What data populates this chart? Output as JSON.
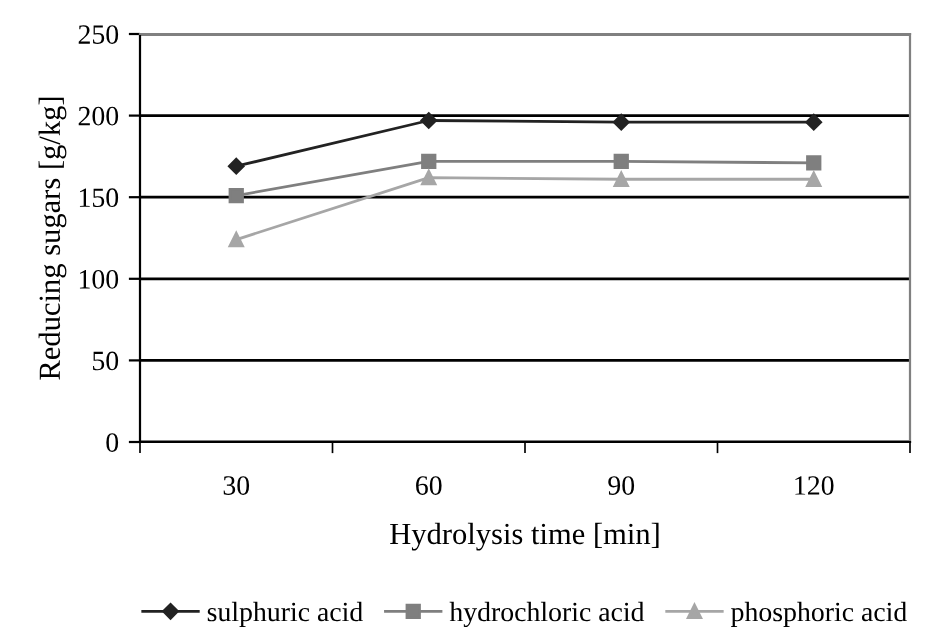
{
  "chart_data": {
    "type": "line",
    "xlabel": "Hydrolysis time [min]",
    "ylabel": "Reducing sugars [g/kg]",
    "categories": [
      "30",
      "60",
      "90",
      "120"
    ],
    "series": [
      {
        "name": "sulphuric acid",
        "color": "#222222",
        "marker": "diamond",
        "values": [
          169,
          197,
          196,
          196
        ]
      },
      {
        "name": "hydrochloric acid",
        "color": "#7f7f7f",
        "marker": "square",
        "values": [
          151,
          172,
          172,
          171
        ]
      },
      {
        "name": "phosphoric acid",
        "color": "#a6a6a6",
        "marker": "triangle",
        "values": [
          124,
          162,
          161,
          161
        ]
      }
    ],
    "ylim": [
      0,
      250
    ],
    "yticks": [
      0,
      50,
      100,
      150,
      200,
      250
    ],
    "grid": "y",
    "legend": "bottom",
    "line_style": "solid"
  }
}
